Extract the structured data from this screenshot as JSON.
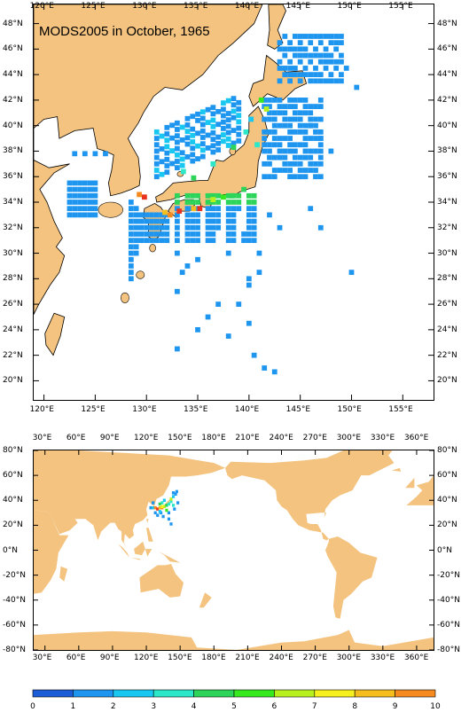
{
  "title": "MODS2005 in October, 1965",
  "colors": {
    "land": "#f3c37f",
    "ocean": "#ffffff",
    "coast": "#000000"
  },
  "regional_map": {
    "lon_range": [
      119,
      158
    ],
    "lat_range": [
      18.5,
      49.5
    ],
    "x_ticks": [
      "120°E",
      "125°E",
      "130°E",
      "135°E",
      "140°E",
      "145°E",
      "150°E",
      "155°E"
    ],
    "y_ticks": [
      "20°N",
      "22°N",
      "24°N",
      "26°N",
      "28°N",
      "30°N",
      "32°N",
      "34°N",
      "36°N",
      "38°N",
      "40°N",
      "42°N",
      "44°N",
      "46°N",
      "48°N"
    ]
  },
  "world_map": {
    "lon_range": [
      20,
      375
    ],
    "lat_range": [
      -80,
      80
    ],
    "x_ticks": [
      "30°E",
      "60°E",
      "90°E",
      "120°E",
      "150°E",
      "180°E",
      "210°E",
      "240°E",
      "270°E",
      "300°E",
      "330°E",
      "360°E"
    ],
    "y_ticks": [
      "-80°N",
      "-60°N",
      "-40°N",
      "-20°N",
      "0°N",
      "20°N",
      "40°N",
      "60°N",
      "80°N"
    ]
  },
  "colorbar": {
    "labels": [
      "0",
      "1",
      "2",
      "3",
      "4",
      "5",
      "6",
      "7",
      "8",
      "9",
      "10"
    ],
    "colors": [
      "#1c5cd7",
      "#1e96f0",
      "#19c8f0",
      "#2ce8c8",
      "#2cd45a",
      "#36e81e",
      "#b8f01e",
      "#f5f01e",
      "#f5be1e",
      "#f58a1e",
      "#e8321e"
    ]
  }
}
